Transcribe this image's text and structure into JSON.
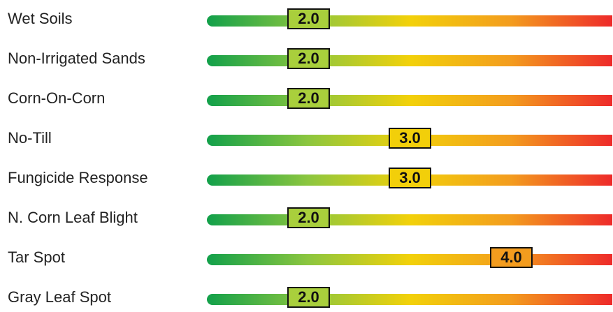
{
  "chart_data": {
    "type": "bar",
    "scale": [
      1,
      5
    ],
    "gradient": [
      "#12a04a",
      "#8cc63f",
      "#f2d10a",
      "#f39c1e",
      "#ee2a2a"
    ],
    "categories": [
      "Wet Soils",
      "Non-Irrigated Sands",
      "Corn-On-Corn",
      "No-Till",
      "Fungicide Response",
      "N. Corn Leaf Blight",
      "Tar Spot",
      "Gray Leaf Spot"
    ],
    "values": [
      2.0,
      2.0,
      2.0,
      3.0,
      3.0,
      2.0,
      4.0,
      2.0
    ],
    "value_labels": [
      "2.0",
      "2.0",
      "2.0",
      "3.0",
      "3.0",
      "2.0",
      "4.0",
      "2.0"
    ],
    "marker_colors": {
      "2.0": "#a9cf3c",
      "3.0": "#f2cf0a",
      "4.0": "#f39c1e"
    }
  }
}
